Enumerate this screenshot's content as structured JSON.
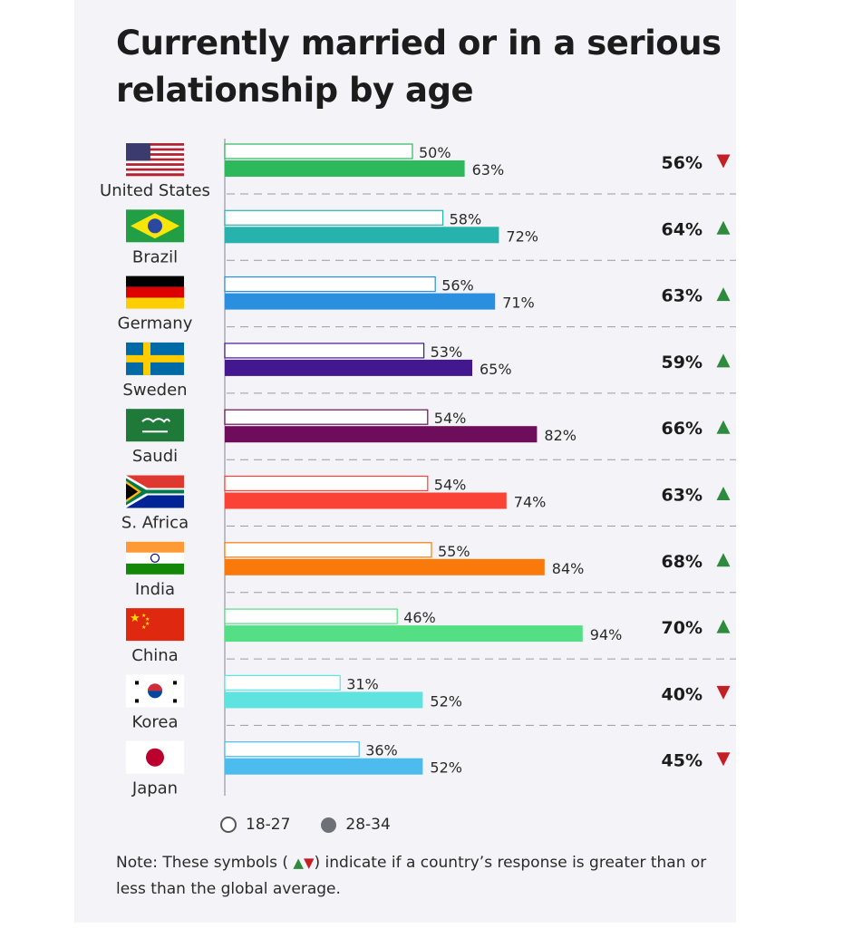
{
  "title": "Currently married or in a serious relationship by age",
  "legend": {
    "young": "18-27",
    "old": "28-34"
  },
  "note": {
    "before": "Note: These symbols (",
    "after": ") indicate if a country’s response is greater than or less than the global average."
  },
  "chart_data": {
    "type": "bar",
    "orientation": "horizontal",
    "title": "Currently married or in a serious relationship by age",
    "categories": [
      "United States",
      "Brazil",
      "Germany",
      "Sweden",
      "Saudi",
      "S. Africa",
      "India",
      "China",
      "Korea",
      "Japan"
    ],
    "series": [
      {
        "name": "18-27",
        "values": [
          50,
          58,
          56,
          53,
          54,
          54,
          55,
          46,
          31,
          36
        ]
      },
      {
        "name": "28-34",
        "values": [
          63,
          72,
          71,
          65,
          82,
          74,
          84,
          94,
          52,
          52
        ]
      }
    ],
    "overall": [
      56,
      64,
      63,
      59,
      66,
      63,
      68,
      70,
      40,
      45
    ],
    "vs_global": [
      "down",
      "up",
      "up",
      "up",
      "up",
      "up",
      "up",
      "up",
      "down",
      "down"
    ],
    "colors": [
      "#2db85c",
      "#27b2ad",
      "#2b8fdf",
      "#43178f",
      "#6d0d5c",
      "#fa4236",
      "#f97a0a",
      "#55df85",
      "#5ee3e0",
      "#4cbbee"
    ],
    "up_color": "#2e8b3e",
    "down_color": "#c32026",
    "xlim": [
      0,
      100
    ],
    "value_suffix": "%"
  }
}
